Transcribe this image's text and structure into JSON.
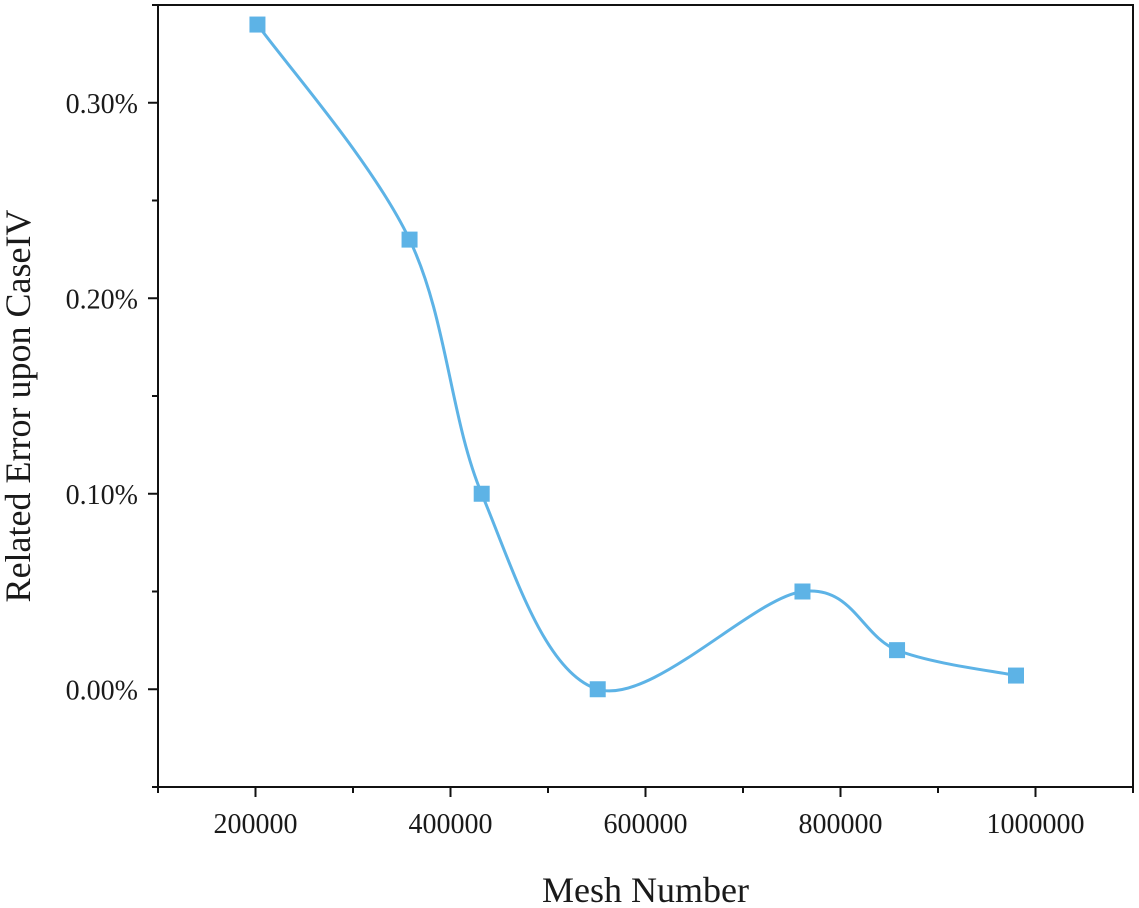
{
  "chart_data": {
    "type": "line",
    "title": "",
    "xlabel": "Mesh Number",
    "ylabel": "Related Error upon CaseIV",
    "xlim": [
      100000,
      1100000
    ],
    "ylim": [
      -0.05,
      0.35
    ],
    "x_ticks": [
      200000,
      400000,
      600000,
      800000,
      1000000
    ],
    "x_tick_labels": [
      "200000",
      "400000",
      "600000",
      "800000",
      "1000000"
    ],
    "y_ticks": [
      0.0,
      0.1,
      0.2,
      0.3
    ],
    "y_tick_labels": [
      "0.00%",
      "0.10%",
      "0.20%",
      "0.30%"
    ],
    "grid": false,
    "legend": "none",
    "series": [
      {
        "x": [
          202000,
          358000,
          432000,
          551000,
          761000,
          858000,
          980000
        ],
        "y": [
          0.34,
          0.23,
          0.1,
          0.0,
          0.05,
          0.02,
          0.007
        ],
        "color": "#5db3e6",
        "marker": "square",
        "smooth": true
      }
    ]
  }
}
